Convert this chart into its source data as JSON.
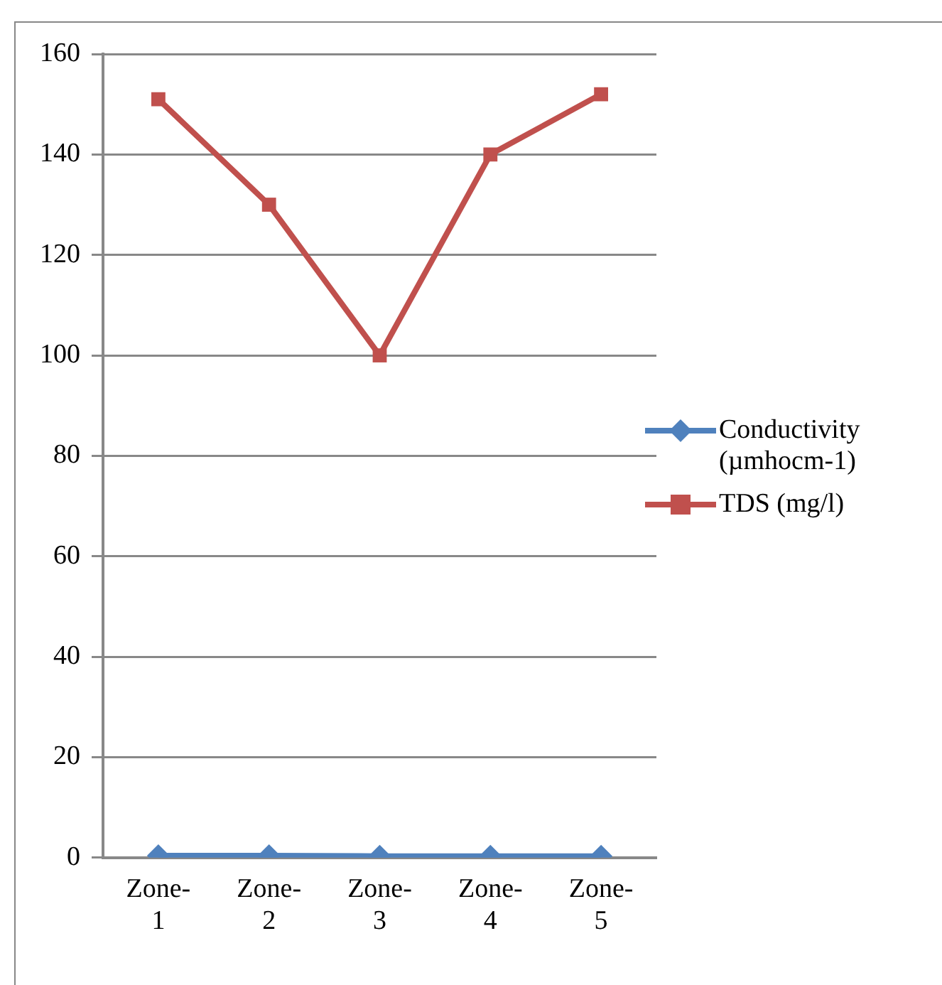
{
  "chart_data": {
    "type": "line",
    "categories": [
      "Zone-1",
      "Zone-2",
      "Zone-3",
      "Zone-4",
      "Zone-5"
    ],
    "series": [
      {
        "name": "Conductivity (µmhocm-1)",
        "color": "#4f81bd",
        "marker": "diamond",
        "values": [
          0.4,
          0.4,
          0.3,
          0.3,
          0.3
        ]
      },
      {
        "name": "TDS (mg/l)",
        "color": "#c0504d",
        "marker": "square",
        "values": [
          151,
          130,
          100,
          140,
          152
        ]
      }
    ],
    "ylim": [
      0,
      160
    ],
    "yticks": [
      0,
      20,
      40,
      60,
      80,
      100,
      120,
      140,
      160
    ],
    "grid": "y",
    "legend": "right",
    "line_style": "solid"
  }
}
